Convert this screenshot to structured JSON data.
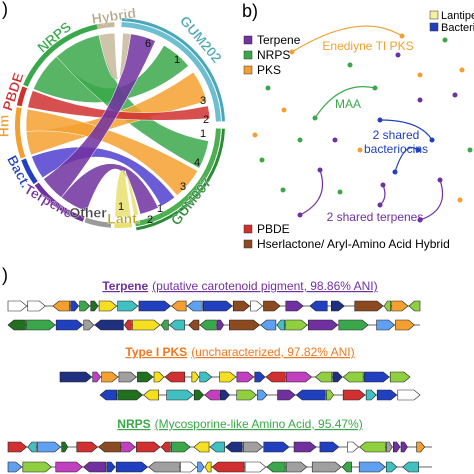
{
  "panel_a": {
    "label": ")",
    "segments": [
      "Hybrid",
      "GUM202",
      "NRPS",
      "PBDE",
      "Hm",
      "Bact.",
      "Terpene",
      "Other",
      "Lant.",
      "GUM007"
    ],
    "counts": [
      6,
      1,
      3,
      2,
      1,
      4,
      3,
      1,
      2,
      1
    ]
  },
  "panel_b": {
    "label": "b)",
    "legend": [
      "Terpene",
      "NRPS",
      "PKS"
    ],
    "legend_right": [
      "Lantipeptic",
      "Bacteriocin"
    ],
    "annotations": [
      "Enediyne TI PKS",
      "MAA",
      "2 shared",
      "bacteriocins",
      "2 shared terpenes"
    ],
    "legend_bottom": [
      "PBDE",
      "Hserlactone/ Aryl-Amino Acid Hybrid"
    ]
  },
  "panel_c": {
    "label": ")",
    "clusters": [
      {
        "name": "Terpene",
        "detail": "(putative carotenoid pigment, 98.86% ANI)"
      },
      {
        "name": "Type I PKS",
        "detail": "(uncharacterized, 97.82% ANI)"
      },
      {
        "name": "NRPS",
        "detail": "(Mycosporine-like Amino Acid, 95.47%)"
      }
    ]
  }
}
